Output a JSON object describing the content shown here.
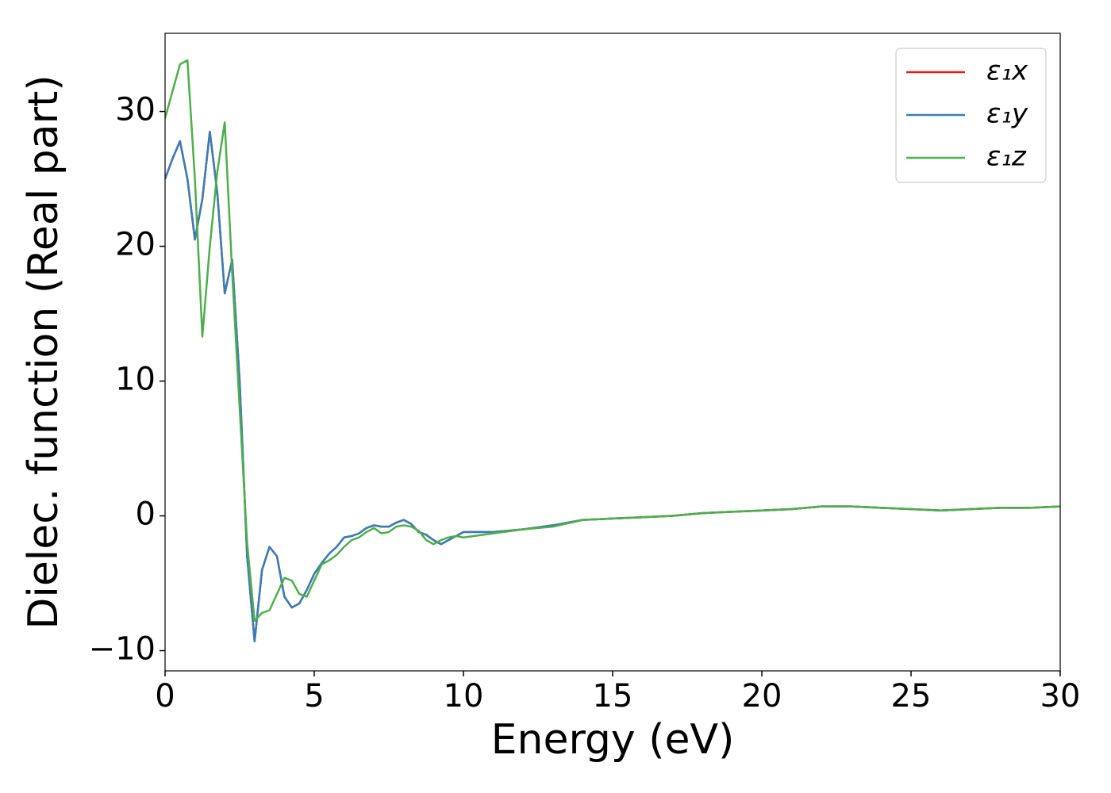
{
  "chart_data": {
    "type": "line",
    "xlabel": "Energy (eV)",
    "ylabel": "Dielec. function (Real part)",
    "x": [
      0,
      0.25,
      0.5,
      0.75,
      1,
      1.25,
      1.5,
      1.75,
      2,
      2.25,
      2.5,
      2.75,
      3,
      3.25,
      3.5,
      3.75,
      4,
      4.25,
      4.5,
      4.75,
      5,
      5.25,
      5.5,
      5.75,
      6,
      6.25,
      6.5,
      6.75,
      7,
      7.25,
      7.5,
      7.75,
      8,
      8.25,
      8.5,
      8.75,
      9,
      9.25,
      9.5,
      9.75,
      10,
      11,
      12,
      13,
      14,
      15,
      16,
      17,
      18,
      19,
      20,
      21,
      22,
      23,
      24,
      25,
      26,
      27,
      28,
      29,
      30
    ],
    "series": [
      {
        "name": "ε₁x",
        "color": "#e41a1c",
        "values": [
          25,
          26.5,
          27.8,
          25,
          20.5,
          23.5,
          28.5,
          24,
          16.5,
          19,
          10,
          -3,
          -9.3,
          -4,
          -2.3,
          -3,
          -6,
          -6.8,
          -6.5,
          -5.5,
          -4.3,
          -3.5,
          -2.8,
          -2.3,
          -1.6,
          -1.5,
          -1.3,
          -0.9,
          -0.7,
          -0.8,
          -0.8,
          -0.5,
          -0.3,
          -0.6,
          -1.2,
          -1.4,
          -1.8,
          -2.1,
          -1.8,
          -1.5,
          -1.2,
          -1.2,
          -1,
          -0.7,
          -0.3,
          -0.2,
          -0.1,
          0,
          0.2,
          0.3,
          0.4,
          0.5,
          0.7,
          0.7,
          0.6,
          0.5,
          0.4,
          0.5,
          0.6,
          0.6,
          0.7
        ]
      },
      {
        "name": "ε₁y",
        "color": "#377eb8",
        "values": [
          25,
          26.5,
          27.8,
          25,
          20.5,
          23.5,
          28.5,
          24,
          16.5,
          19,
          10,
          -3,
          -9.3,
          -4,
          -2.3,
          -3,
          -6,
          -6.8,
          -6.5,
          -5.5,
          -4.3,
          -3.5,
          -2.8,
          -2.3,
          -1.6,
          -1.5,
          -1.3,
          -0.9,
          -0.7,
          -0.8,
          -0.8,
          -0.5,
          -0.3,
          -0.6,
          -1.2,
          -1.4,
          -1.8,
          -2.1,
          -1.8,
          -1.5,
          -1.2,
          -1.2,
          -1,
          -0.7,
          -0.3,
          -0.2,
          -0.1,
          0,
          0.2,
          0.3,
          0.4,
          0.5,
          0.7,
          0.7,
          0.6,
          0.5,
          0.4,
          0.5,
          0.6,
          0.6,
          0.7
        ]
      },
      {
        "name": "ε₁z",
        "color": "#4daf4a",
        "values": [
          29.5,
          31.5,
          33.5,
          33.8,
          25,
          13.3,
          20,
          25.5,
          29.2,
          18,
          8,
          -2,
          -7.8,
          -7.2,
          -7,
          -5.8,
          -4.6,
          -4.8,
          -5.8,
          -6,
          -4.8,
          -3.6,
          -3.3,
          -2.9,
          -2.3,
          -1.8,
          -1.6,
          -1.2,
          -0.9,
          -1.3,
          -1.2,
          -0.8,
          -0.7,
          -0.8,
          -1.1,
          -1.8,
          -2.1,
          -1.8,
          -1.6,
          -1.5,
          -1.6,
          -1.3,
          -1,
          -0.8,
          -0.3,
          -0.2,
          -0.1,
          0,
          0.2,
          0.3,
          0.4,
          0.5,
          0.7,
          0.7,
          0.6,
          0.5,
          0.4,
          0.5,
          0.6,
          0.6,
          0.7
        ]
      }
    ],
    "xlim": [
      0,
      30
    ],
    "ylim": [
      -11.5,
      35.8
    ],
    "xticks": [
      0,
      5,
      10,
      15,
      20,
      25,
      30
    ],
    "yticks": [
      {
        "value": -10,
        "label": "−10"
      },
      0,
      10,
      20,
      30
    ],
    "legend": "upper right"
  }
}
